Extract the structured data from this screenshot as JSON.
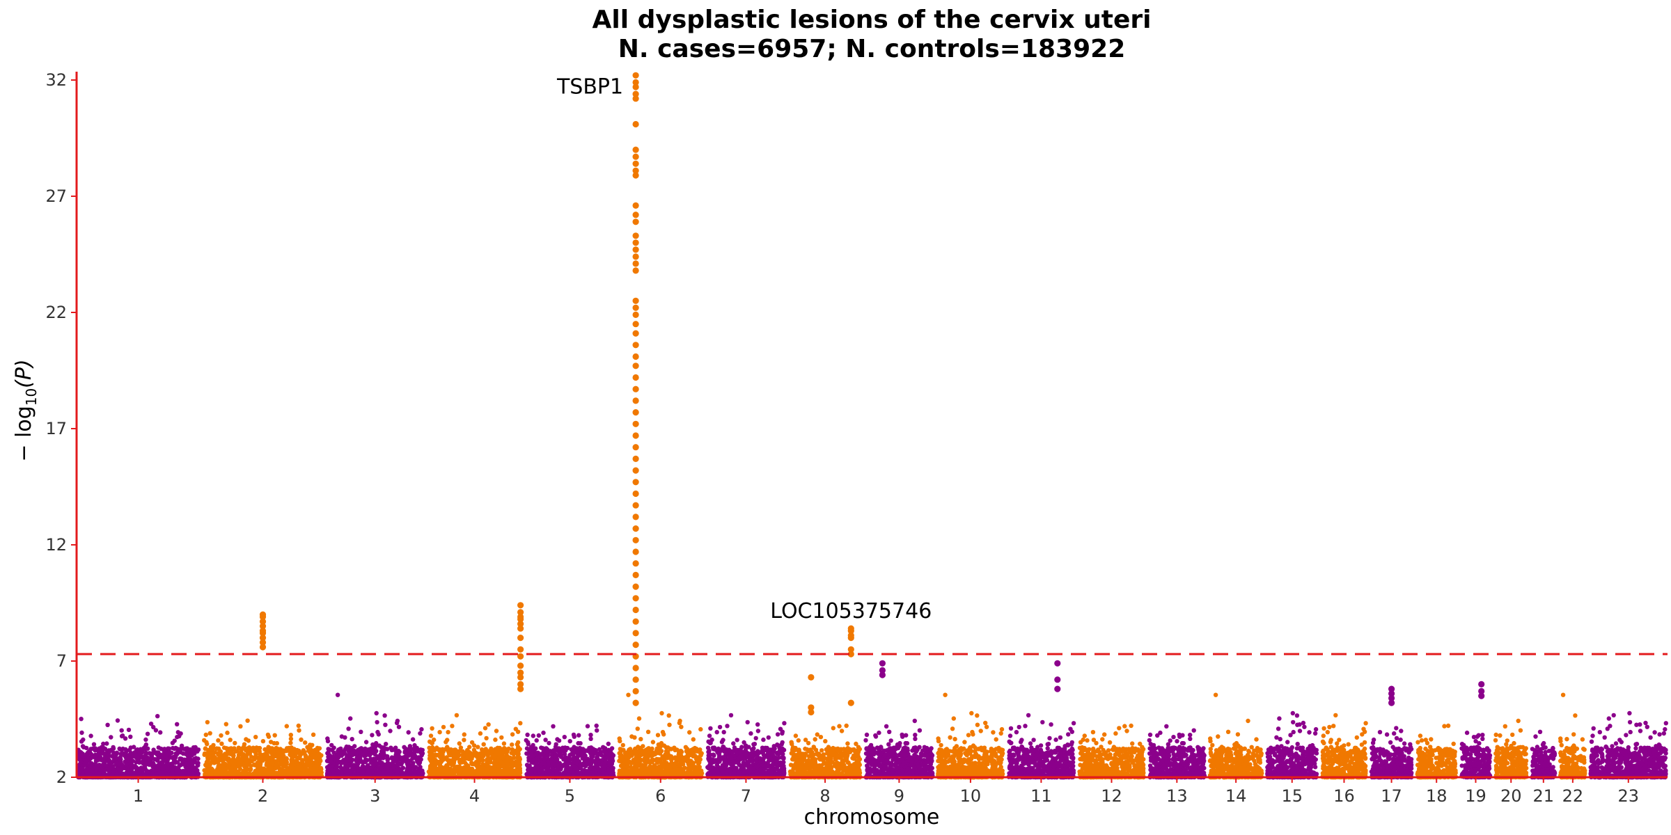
{
  "chart_data": {
    "type": "scatter",
    "title": "All dysplastic lesions of the cervix uteri",
    "subtitle": "N. cases=6957; N. controls=183922",
    "xlabel": "chromosome",
    "ylabel_parts": {
      "prefix": "− log",
      "sub": "10",
      "suffix": "(P)"
    },
    "ylim": [
      2,
      32.3
    ],
    "yticks": [
      2,
      7,
      12,
      17,
      22,
      27,
      32
    ],
    "significance_line": 7.3,
    "colors": {
      "purple": "#8B008B",
      "orange": "#F07800",
      "axis": "#E31A1C",
      "threshold": "#E31A1C"
    },
    "chromosomes": [
      {
        "label": "1",
        "size": 249,
        "color": "purple"
      },
      {
        "label": "2",
        "size": 243,
        "color": "orange"
      },
      {
        "label": "3",
        "size": 198,
        "color": "purple"
      },
      {
        "label": "4",
        "size": 190,
        "color": "orange"
      },
      {
        "label": "5",
        "size": 181,
        "color": "purple"
      },
      {
        "label": "6",
        "size": 171,
        "color": "orange"
      },
      {
        "label": "7",
        "size": 159,
        "color": "purple"
      },
      {
        "label": "8",
        "size": 145,
        "color": "orange"
      },
      {
        "label": "9",
        "size": 138,
        "color": "purple"
      },
      {
        "label": "10",
        "size": 134,
        "color": "orange"
      },
      {
        "label": "11",
        "size": 135,
        "color": "purple"
      },
      {
        "label": "12",
        "size": 133,
        "color": "orange"
      },
      {
        "label": "13",
        "size": 114,
        "color": "purple"
      },
      {
        "label": "14",
        "size": 107,
        "color": "orange"
      },
      {
        "label": "15",
        "size": 102,
        "color": "purple"
      },
      {
        "label": "16",
        "size": 90,
        "color": "orange"
      },
      {
        "label": "17",
        "size": 83,
        "color": "purple"
      },
      {
        "label": "18",
        "size": 80,
        "color": "orange"
      },
      {
        "label": "19",
        "size": 59,
        "color": "purple"
      },
      {
        "label": "20",
        "size": 64,
        "color": "orange"
      },
      {
        "label": "21",
        "size": 47,
        "color": "purple"
      },
      {
        "label": "22",
        "size": 51,
        "color": "orange"
      },
      {
        "label": "23",
        "size": 156,
        "color": "purple"
      }
    ],
    "peaks": [
      {
        "chrom": "2",
        "x": 0.5,
        "values": [
          9.0,
          8.9,
          8.7,
          8.5,
          8.3,
          8.2,
          8.0,
          7.8,
          7.6
        ]
      },
      {
        "chrom": "4",
        "x": 1.0,
        "values": [
          9.4,
          9.1,
          8.9,
          8.8,
          8.6,
          8.4,
          8.0,
          7.5,
          7.2,
          6.8,
          6.5,
          6.3,
          6.0,
          5.8
        ]
      },
      {
        "chrom": "6",
        "x": 0.2,
        "label": "TSBP1",
        "values": [
          32.2,
          31.9,
          31.7,
          31.4,
          31.2,
          30.1,
          29.0,
          28.7,
          28.4,
          28.1,
          27.9,
          26.6,
          26.2,
          25.9,
          25.3,
          25.0,
          24.7,
          24.4,
          24.1,
          23.8,
          22.5,
          22.2,
          21.9,
          21.5,
          21.1,
          20.6,
          20.1,
          19.7,
          19.2,
          18.7,
          18.2,
          17.7,
          17.2,
          16.7,
          16.2,
          15.7,
          15.2,
          14.7,
          14.2,
          13.7,
          13.2,
          12.7,
          12.2,
          11.7,
          11.2,
          10.7,
          10.2,
          9.7,
          9.2,
          8.7,
          8.2,
          7.7,
          7.2,
          6.7,
          6.2,
          5.7,
          5.2
        ]
      },
      {
        "chrom": "8",
        "x": 0.87,
        "label": "LOC105375746",
        "values": [
          8.4,
          8.3,
          8.1,
          8.0,
          7.5,
          7.3,
          5.2
        ]
      },
      {
        "chrom": "9",
        "x": 0.25,
        "values": [
          6.9,
          6.6,
          6.4
        ]
      },
      {
        "chrom": "11",
        "x": 0.75,
        "values": [
          6.9,
          6.2,
          5.8
        ]
      },
      {
        "chrom": "17",
        "x": 0.5,
        "values": [
          5.8,
          5.6,
          5.4,
          5.2
        ]
      },
      {
        "chrom": "8",
        "x": 0.3,
        "values": [
          6.3,
          5.0,
          4.8
        ]
      },
      {
        "chrom": "19",
        "x": 0.7,
        "values": [
          6.0,
          5.7,
          5.5
        ]
      }
    ]
  }
}
